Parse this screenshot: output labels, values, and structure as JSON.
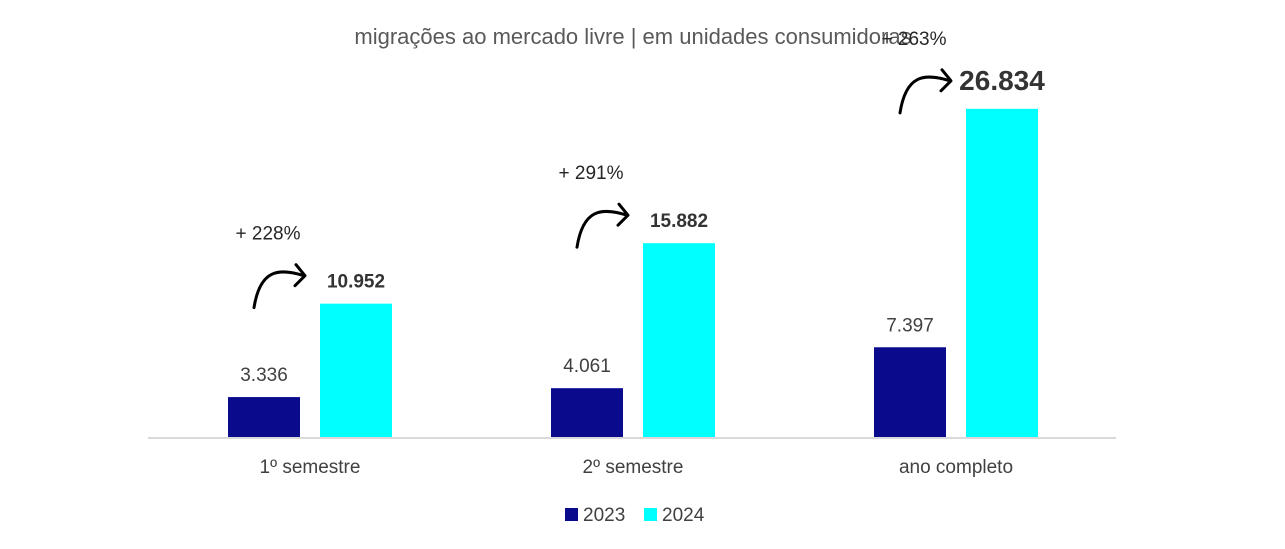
{
  "chart_data": {
    "type": "bar",
    "title": "migrações ao mercado livre | em unidades consumidoras",
    "categories": [
      "1º semestre",
      "2º semestre",
      "ano completo"
    ],
    "series": [
      {
        "name": "2023",
        "values": [
          3336,
          4061,
          7397
        ],
        "labels": [
          "3.336",
          "4.061",
          "7.397"
        ],
        "color": "#0a0a8c"
      },
      {
        "name": "2024",
        "values": [
          10952,
          15882,
          26834
        ],
        "labels": [
          "10.952",
          "15.882",
          "26.834"
        ],
        "color": "#00ffff"
      }
    ],
    "annotations": [
      "+ 228%",
      "+ 291%",
      "+ 263%"
    ],
    "ylim": [
      0,
      30000
    ],
    "xlabel": "",
    "ylabel": "",
    "grid": false,
    "legend_position": "bottom-center",
    "axis_color": "#d9d9d9"
  }
}
